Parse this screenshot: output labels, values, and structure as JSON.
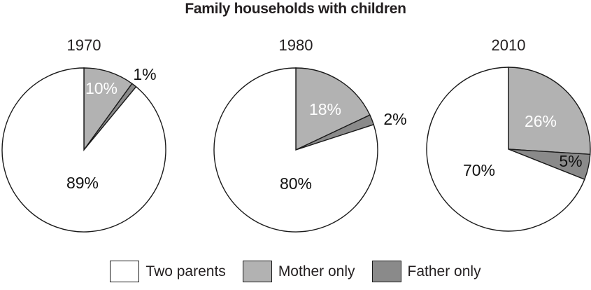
{
  "chart_data": {
    "type": "pie",
    "title": "Family households with children",
    "legend": [
      {
        "label": "Two parents",
        "color": "#ffffff"
      },
      {
        "label": "Mother only",
        "color": "#b2b2b2"
      },
      {
        "label": "Father only",
        "color": "#8a8a8a"
      }
    ],
    "layout": {
      "legend_position": "bottom",
      "slice_order": "clockwise from 12 o'clock: Mother only, Father only, Two parents",
      "outline_color": "#1a1a1a",
      "grid": "off"
    },
    "pies": [
      {
        "year": "1970",
        "slices": [
          {
            "label": "Mother only",
            "value": 10,
            "display": "10%"
          },
          {
            "label": "Father only",
            "value": 1,
            "display": "1%"
          },
          {
            "label": "Two parents",
            "value": 89,
            "display": "89%"
          }
        ]
      },
      {
        "year": "1980",
        "slices": [
          {
            "label": "Mother only",
            "value": 18,
            "display": "18%"
          },
          {
            "label": "Father only",
            "value": 2,
            "display": "2%"
          },
          {
            "label": "Two parents",
            "value": 80,
            "display": "80%"
          }
        ]
      },
      {
        "year": "2010",
        "slices": [
          {
            "label": "Mother only",
            "value": 26,
            "display": "26%"
          },
          {
            "label": "Father only",
            "value": 5,
            "display": "5%"
          },
          {
            "label": "Two parents",
            "value": 70,
            "display": "70%"
          }
        ]
      }
    ]
  }
}
